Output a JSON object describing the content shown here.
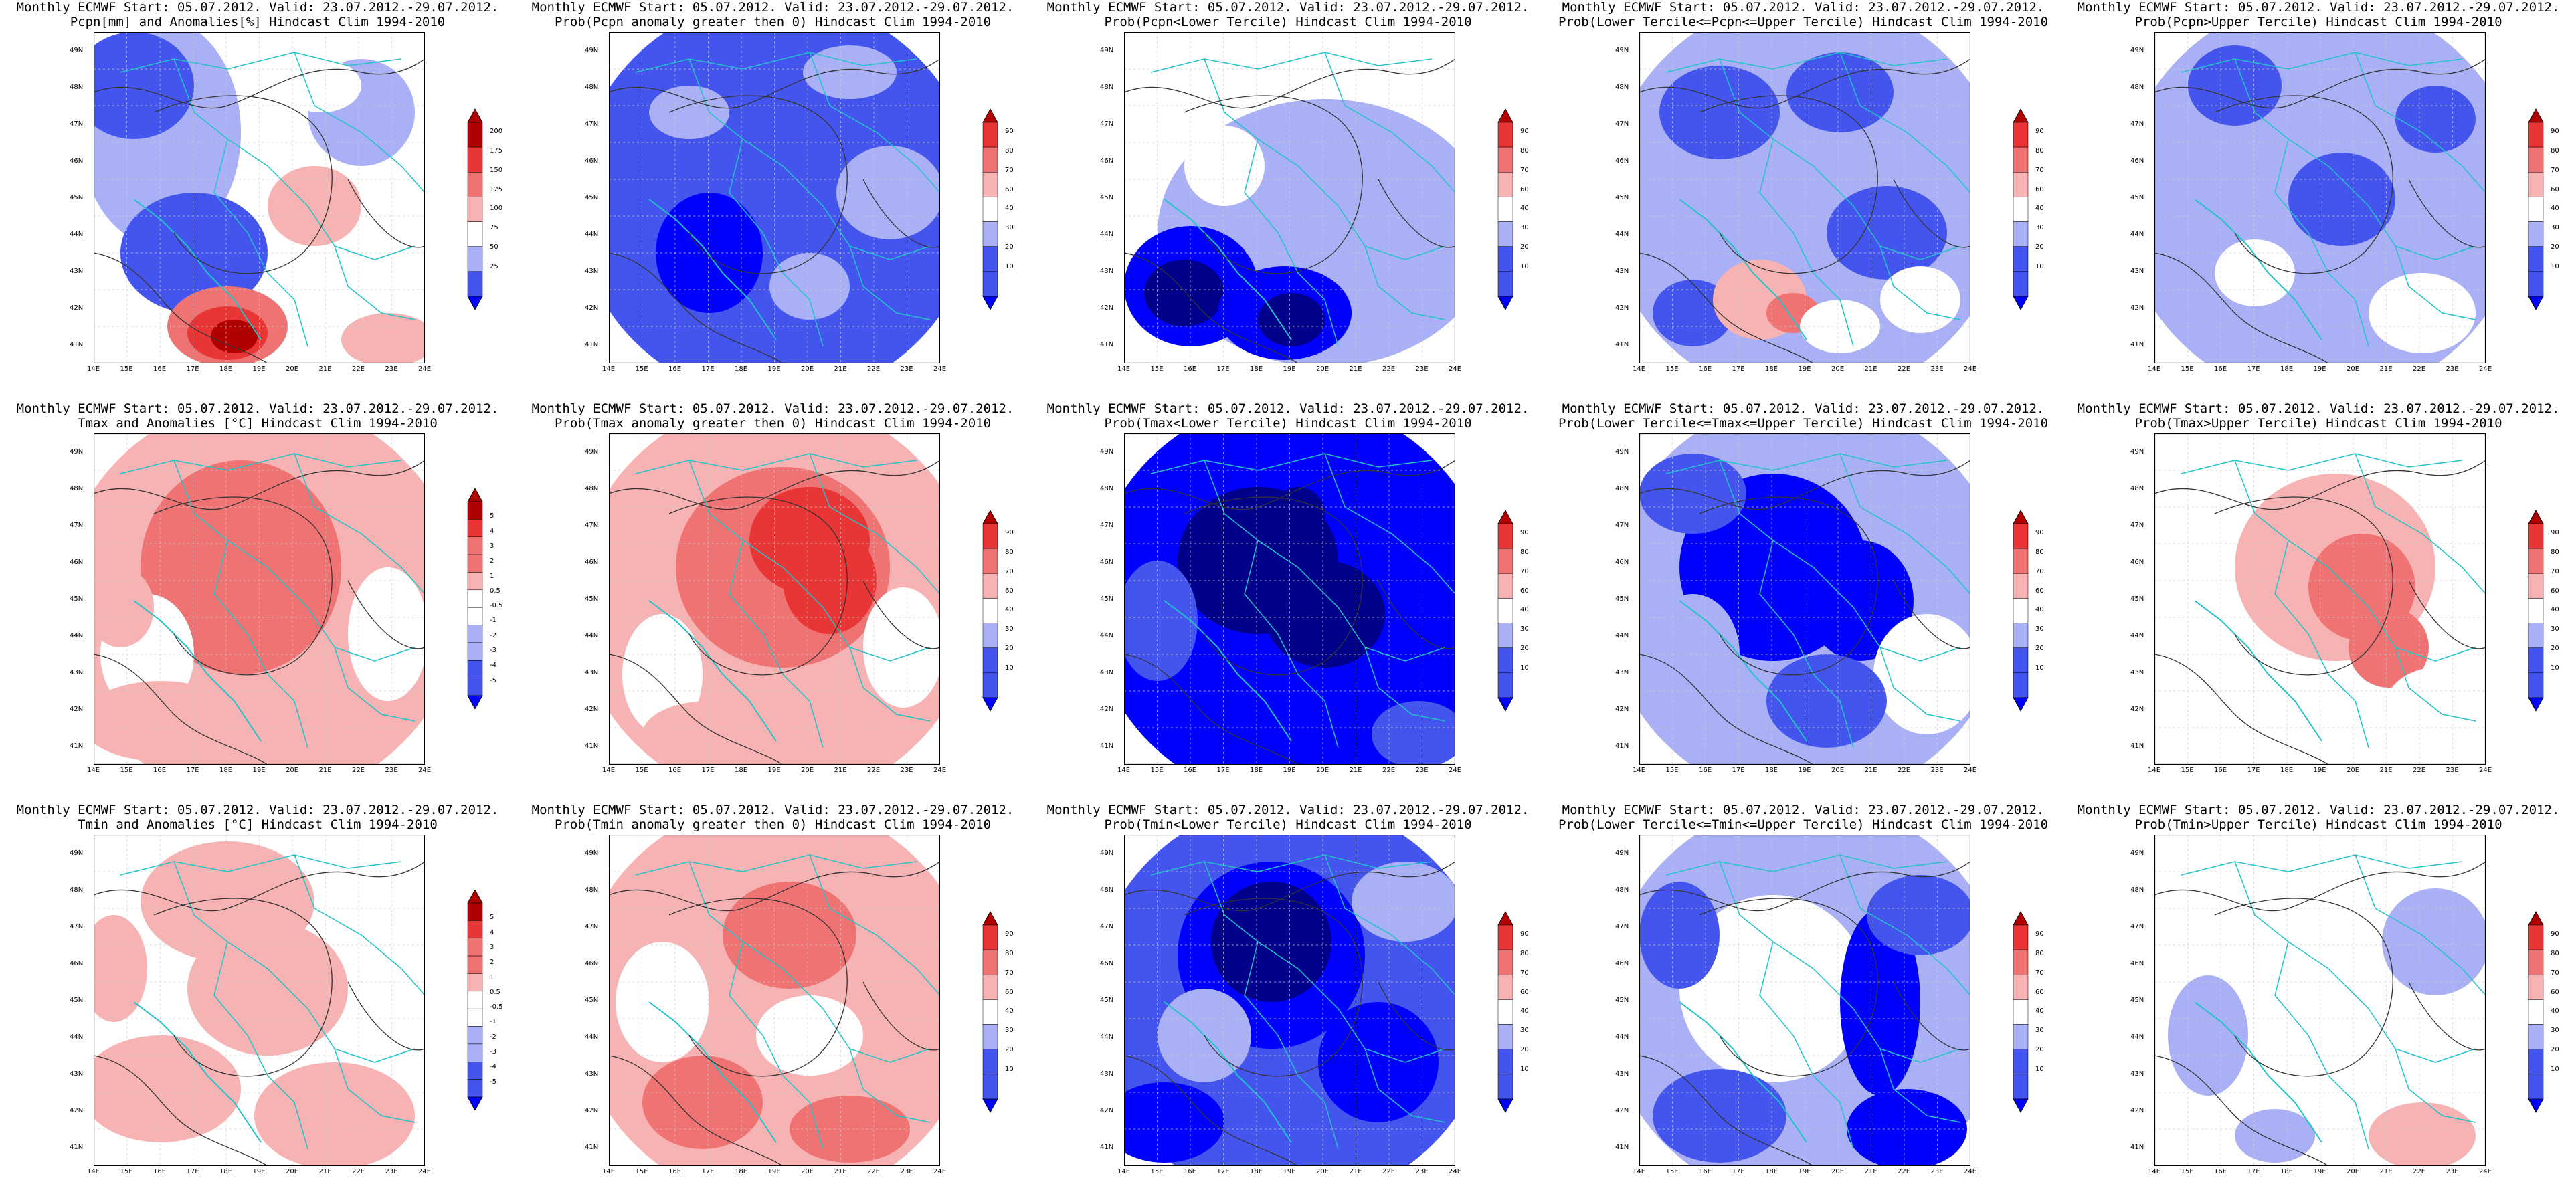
{
  "header": "Monthly ECMWF Start: 05.07.2012. Valid: 23.07.2012.-29.07.2012.",
  "x_ticks": [
    "14E",
    "15E",
    "16E",
    "17E",
    "18E",
    "19E",
    "20E",
    "21E",
    "22E",
    "23E",
    "24E"
  ],
  "y_ticks": [
    "41N",
    "42N",
    "43N",
    "44N",
    "45N",
    "46N",
    "47N",
    "48N",
    "49N"
  ],
  "colors": {
    "dark_blue": "#00008b",
    "blue": "#0000ff",
    "mid_blue": "#4455ee",
    "light_blue": "#a9b0f5",
    "white": "#ffffff",
    "light_red": "#f7b3b3",
    "mid_red": "#ef7373",
    "red": "#e83535",
    "dark_red": "#b00000",
    "contour": "#333333",
    "border": "#22c3c8"
  },
  "anomaly_pcpn_scale": [
    "25",
    "50",
    "75",
    "100",
    "125",
    "150",
    "175",
    "200"
  ],
  "anomaly_temp_scale": [
    "-5",
    "-4",
    "-3",
    "-2",
    "-1",
    "-0.5",
    "0.5",
    "1",
    "2",
    "3",
    "4",
    "5"
  ],
  "prob_scale": [
    "10",
    "20",
    "30",
    "40",
    "60",
    "70",
    "80",
    "90"
  ],
  "panels": [
    {
      "line1": "Monthly ECMWF Start: 05.07.2012. Valid: 23.07.2012.-29.07.2012.",
      "line2": "Pcpn[mm] and Anomalies[%] Hindcast Clim 1994-2010",
      "scale": "pcpn",
      "pattern": "pcpn_anom"
    },
    {
      "line1": "Monthly ECMWF Start: 05.07.2012. Valid: 23.07.2012.-29.07.2012.",
      "line2": "Prob(Pcpn anomaly greater then 0) Hindcast Clim 1994-2010",
      "scale": "prob",
      "pattern": "pcpn_gt0"
    },
    {
      "line1": "Monthly ECMWF Start: 05.07.2012. Valid: 23.07.2012.-29.07.2012.",
      "line2": "Prob(Pcpn<Lower Tercile) Hindcast Clim 1994-2010",
      "scale": "prob",
      "pattern": "pcpn_low"
    },
    {
      "line1": "Monthly ECMWF Start: 05.07.2012. Valid: 23.07.2012.-29.07.2012.",
      "line2": "Prob(Lower Tercile<=Pcpn<=Upper Tercile) Hindcast Clim 1994-2010",
      "scale": "prob",
      "pattern": "pcpn_mid"
    },
    {
      "line1": "Monthly ECMWF Start: 05.07.2012. Valid: 23.07.2012.-29.07.2012.",
      "line2": "Prob(Pcpn>Upper Tercile) Hindcast Clim 1994-2010",
      "scale": "prob",
      "pattern": "pcpn_up"
    },
    {
      "line1": "Monthly ECMWF Start: 05.07.2012. Valid: 23.07.2012.-29.07.2012.",
      "line2": "Tmax and Anomalies [°C] Hindcast Clim 1994-2010",
      "scale": "temp",
      "pattern": "tmax_anom"
    },
    {
      "line1": "Monthly ECMWF Start: 05.07.2012. Valid: 23.07.2012.-29.07.2012.",
      "line2": "Prob(Tmax anomaly greater then 0) Hindcast Clim 1994-2010",
      "scale": "prob",
      "pattern": "tmax_gt0"
    },
    {
      "line1": "Monthly ECMWF Start: 05.07.2012. Valid: 23.07.2012.-29.07.2012.",
      "line2": "Prob(Tmax<Lower Tercile) Hindcast Clim 1994-2010",
      "scale": "prob",
      "pattern": "tmax_low"
    },
    {
      "line1": "Monthly ECMWF Start: 05.07.2012. Valid: 23.07.2012.-29.07.2012.",
      "line2": "Prob(Lower Tercile<=Tmax<=Upper Tercile) Hindcast Clim 1994-2010",
      "scale": "prob",
      "pattern": "tmax_mid"
    },
    {
      "line1": "Monthly ECMWF Start: 05.07.2012. Valid: 23.07.2012.-29.07.2012.",
      "line2": "Prob(Tmax>Upper Tercile) Hindcast Clim 1994-2010",
      "scale": "prob",
      "pattern": "tmax_up"
    },
    {
      "line1": "Monthly ECMWF Start: 05.07.2012. Valid: 23.07.2012.-29.07.2012.",
      "line2": "Tmin and Anomalies [°C] Hindcast Clim 1994-2010",
      "scale": "temp",
      "pattern": "tmin_anom"
    },
    {
      "line1": "Monthly ECMWF Start: 05.07.2012. Valid: 23.07.2012.-29.07.2012.",
      "line2": "Prob(Tmin anomaly greater then 0) Hindcast Clim 1994-2010",
      "scale": "prob",
      "pattern": "tmin_gt0"
    },
    {
      "line1": "Monthly ECMWF Start: 05.07.2012. Valid: 23.07.2012.-29.07.2012.",
      "line2": "Prob(Tmin<Lower Tercile) Hindcast Clim 1994-2010",
      "scale": "prob",
      "pattern": "tmin_low"
    },
    {
      "line1": "Monthly ECMWF Start: 05.07.2012. Valid: 23.07.2012.-29.07.2012.",
      "line2": "Prob(Lower Tercile<=Tmin<=Upper Tercile) Hindcast Clim 1994-2010",
      "scale": "prob",
      "pattern": "tmin_mid"
    },
    {
      "line1": "Monthly ECMWF Start: 05.07.2012. Valid: 23.07.2012.-29.07.2012.",
      "line2": "Prob(Tmin>Upper Tercile) Hindcast Clim 1994-2010",
      "scale": "prob",
      "pattern": "tmin_up"
    }
  ]
}
